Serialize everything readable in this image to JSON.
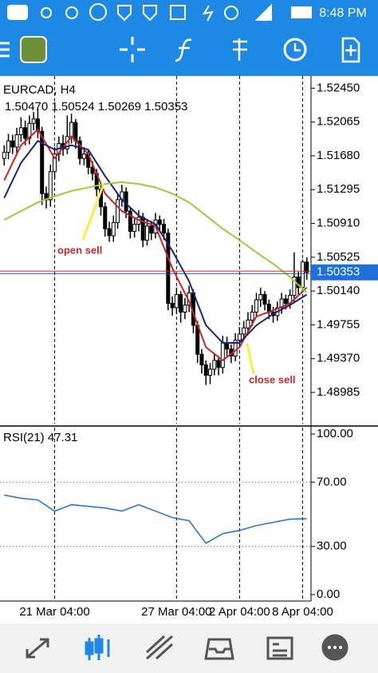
{
  "status_bar": {
    "time": "8:48 PM"
  },
  "chart_data": [
    {
      "type": "candlestick",
      "symbol": "EURCAD, H4",
      "ohlc_info": "1.50470 1.50524 1.50269 1.50353",
      "ohlc": [
        [
          1.5165,
          1.518,
          1.5157,
          1.5172
        ],
        [
          1.5172,
          1.5193,
          1.5164,
          1.5185
        ],
        [
          1.5185,
          1.5192,
          1.517,
          1.5178
        ],
        [
          1.5178,
          1.52,
          1.517,
          1.5192
        ],
        [
          1.5192,
          1.5212,
          1.5184,
          1.52
        ],
        [
          1.52,
          1.5208,
          1.518,
          1.5188
        ],
        [
          1.5188,
          1.5214,
          1.5181,
          1.5205
        ],
        [
          1.5205,
          1.5218,
          1.5197,
          1.521
        ],
        [
          1.521,
          1.5222,
          1.5188,
          1.5196
        ],
        [
          1.5196,
          1.5201,
          1.5112,
          1.5125
        ],
        [
          1.5125,
          1.5133,
          1.5108,
          1.5118
        ],
        [
          1.5118,
          1.5158,
          1.511,
          1.515
        ],
        [
          1.515,
          1.5178,
          1.5142,
          1.517
        ],
        [
          1.517,
          1.519,
          1.5162,
          1.5182
        ],
        [
          1.5182,
          1.5192,
          1.5168,
          1.5176
        ],
        [
          1.5176,
          1.5214,
          1.517,
          1.519
        ],
        [
          1.519,
          1.5216,
          1.5182,
          1.5206
        ],
        [
          1.5206,
          1.521,
          1.5176,
          1.5185
        ],
        [
          1.5185,
          1.519,
          1.5158,
          1.5165
        ],
        [
          1.5165,
          1.5178,
          1.5157,
          1.517
        ],
        [
          1.517,
          1.5175,
          1.5147,
          1.5155
        ],
        [
          1.5155,
          1.5162,
          1.514,
          1.5148
        ],
        [
          1.5148,
          1.5153,
          1.5122,
          1.513
        ],
        [
          1.513,
          1.5135,
          1.51,
          1.511
        ],
        [
          1.511,
          1.5115,
          1.5076,
          1.5085
        ],
        [
          1.5085,
          1.5093,
          1.507,
          1.5077
        ],
        [
          1.5077,
          1.51,
          1.507,
          1.5092
        ],
        [
          1.5092,
          1.5126,
          1.5085,
          1.5118
        ],
        [
          1.5118,
          1.5135,
          1.511,
          1.5127
        ],
        [
          1.5127,
          1.5132,
          1.5097,
          1.5105
        ],
        [
          1.5105,
          1.511,
          1.5074,
          1.5082
        ],
        [
          1.5082,
          1.5098,
          1.5075,
          1.509
        ],
        [
          1.509,
          1.5106,
          1.5082,
          1.5098
        ],
        [
          1.5098,
          1.5103,
          1.5064,
          1.5072
        ],
        [
          1.5072,
          1.5096,
          1.5066,
          1.5088
        ],
        [
          1.5088,
          1.5094,
          1.5072,
          1.508
        ],
        [
          1.508,
          1.5103,
          1.5074,
          1.5095
        ],
        [
          1.5095,
          1.51,
          1.5082,
          1.509
        ],
        [
          1.509,
          1.5096,
          1.5072,
          1.508
        ],
        [
          1.508,
          1.5085,
          1.4992,
          1.5
        ],
        [
          1.5,
          1.5008,
          1.4986,
          1.4995
        ],
        [
          1.4995,
          1.5018,
          1.4988,
          1.501
        ],
        [
          1.501,
          1.5014,
          1.4978,
          1.499
        ],
        [
          1.499,
          1.5006,
          1.4982,
          1.4998
        ],
        [
          1.4998,
          1.502,
          1.499,
          1.5012
        ],
        [
          1.5012,
          1.5016,
          1.4966,
          1.4975
        ],
        [
          1.4975,
          1.498,
          1.4932,
          1.4942
        ],
        [
          1.4942,
          1.4948,
          1.492,
          1.493
        ],
        [
          1.493,
          1.4935,
          1.4907,
          1.4918
        ],
        [
          1.4918,
          1.4932,
          1.4908,
          1.4925
        ],
        [
          1.4925,
          1.4943,
          1.4918,
          1.4935
        ],
        [
          1.4935,
          1.494,
          1.4918,
          1.4927
        ],
        [
          1.4927,
          1.4963,
          1.492,
          1.4955
        ],
        [
          1.4955,
          1.4962,
          1.494,
          1.4948
        ],
        [
          1.4948,
          1.4953,
          1.4932,
          1.494
        ],
        [
          1.494,
          1.4966,
          1.4934,
          1.4958
        ],
        [
          1.4958,
          1.4973,
          1.495,
          1.4965
        ],
        [
          1.4965,
          1.498,
          1.4958,
          1.4972
        ],
        [
          1.4972,
          1.499,
          1.4965,
          1.4981
        ],
        [
          1.4981,
          1.4998,
          1.4974,
          1.499
        ],
        [
          1.499,
          1.5012,
          1.4984,
          1.5004
        ],
        [
          1.5004,
          1.5018,
          1.4996,
          1.501
        ],
        [
          1.501,
          1.5014,
          1.4992,
          1.4999
        ],
        [
          1.4999,
          1.5004,
          1.4982,
          1.499
        ],
        [
          1.499,
          1.4996,
          1.4978,
          1.4986
        ],
        [
          1.4986,
          1.5002,
          1.498,
          1.4995
        ],
        [
          1.4995,
          1.5012,
          1.4988,
          1.5005
        ],
        [
          1.5005,
          1.501,
          1.4993,
          1.5
        ],
        [
          1.5,
          1.5016,
          1.4994,
          1.5009
        ],
        [
          1.5009,
          1.5058,
          1.5002,
          1.503
        ],
        [
          1.503,
          1.5036,
          1.501,
          1.5018
        ],
        [
          1.5018,
          1.505,
          1.5012,
          1.5047
        ],
        [
          1.5047,
          1.50524,
          1.50269,
          1.50353
        ]
      ],
      "xlim": [
        -1,
        73
      ],
      "xticks": [
        {
          "value": 12,
          "label": "21 Mar 04:00"
        },
        {
          "value": 41,
          "label": "27 Mar 04:00"
        },
        {
          "value": 56,
          "label": "2 Apr 04:00"
        },
        {
          "value": 71,
          "label": "8 Apr 04:00"
        }
      ],
      "ylim": [
        1.4863,
        1.5259
      ],
      "yticks": [
        {
          "value": 1.5245,
          "label": "1.52450"
        },
        1.52065,
        {
          "value": 1.5168,
          "label": "1.51680"
        },
        1.51295,
        {
          "value": 1.5091,
          "label": "1.50910"
        },
        1.50525,
        {
          "value": 1.5014,
          "label": "1.50140"
        },
        1.49755,
        {
          "value": 1.4937,
          "label": "1.49370"
        },
        1.48985
      ],
      "current_price": 1.50353,
      "series": [
        {
          "color": "#c62828",
          "x": [
            0,
            4,
            8,
            12,
            16,
            20,
            24,
            28,
            32,
            36,
            40,
            44,
            48,
            52,
            56,
            60,
            64,
            68,
            72
          ],
          "values": [
            1.514,
            1.518,
            1.5198,
            1.5165,
            1.519,
            1.517,
            1.5125,
            1.5105,
            1.5095,
            1.5088,
            1.504,
            1.5002,
            1.495,
            1.4935,
            1.495,
            1.4985,
            1.4992,
            1.5,
            1.5018
          ]
        },
        {
          "color": "#1a237e",
          "x": [
            0,
            4,
            8,
            12,
            16,
            20,
            24,
            28,
            32,
            36,
            40,
            44,
            48,
            52,
            56,
            60,
            64,
            68,
            72
          ],
          "values": [
            1.512,
            1.516,
            1.5185,
            1.5175,
            1.518,
            1.5175,
            1.5145,
            1.5118,
            1.51,
            1.509,
            1.506,
            1.5025,
            1.4975,
            1.4955,
            1.4955,
            1.4975,
            1.4988,
            1.4998,
            1.501
          ]
        },
        {
          "color": "#9ccc3c",
          "x": [
            0,
            4,
            8,
            12,
            16,
            20,
            24,
            28,
            32,
            36,
            40,
            44,
            48,
            52,
            56,
            60,
            64,
            68,
            72
          ],
          "values": [
            1.5095,
            1.5105,
            1.5115,
            1.5122,
            1.5128,
            1.5132,
            1.5136,
            1.5138,
            1.5136,
            1.5132,
            1.5125,
            1.5115,
            1.51,
            1.5085,
            1.5072,
            1.5058,
            1.5045,
            1.503,
            1.5012
          ]
        }
      ],
      "annotations": [
        "open sell",
        "close sell"
      ]
    },
    {
      "type": "line",
      "title": "RSI(21) 47.31",
      "xlim": [
        -1,
        73
      ],
      "ylim": [
        -4,
        104
      ],
      "yticks": [
        {
          "value": 100,
          "label": "100.00"
        },
        {
          "value": 70,
          "label": "70.00"
        },
        {
          "value": 30,
          "label": "30.00"
        },
        {
          "value": 0,
          "label": "0.00"
        }
      ],
      "x": [
        0,
        4,
        8,
        12,
        16,
        20,
        24,
        28,
        32,
        36,
        40,
        44,
        48,
        52,
        56,
        60,
        64,
        68,
        72
      ],
      "values": [
        62,
        60,
        59,
        52,
        56,
        55,
        54,
        52,
        56,
        52,
        48,
        46,
        32,
        38,
        40,
        43,
        45,
        47,
        47.31
      ],
      "color": "#1e6fd9"
    }
  ]
}
